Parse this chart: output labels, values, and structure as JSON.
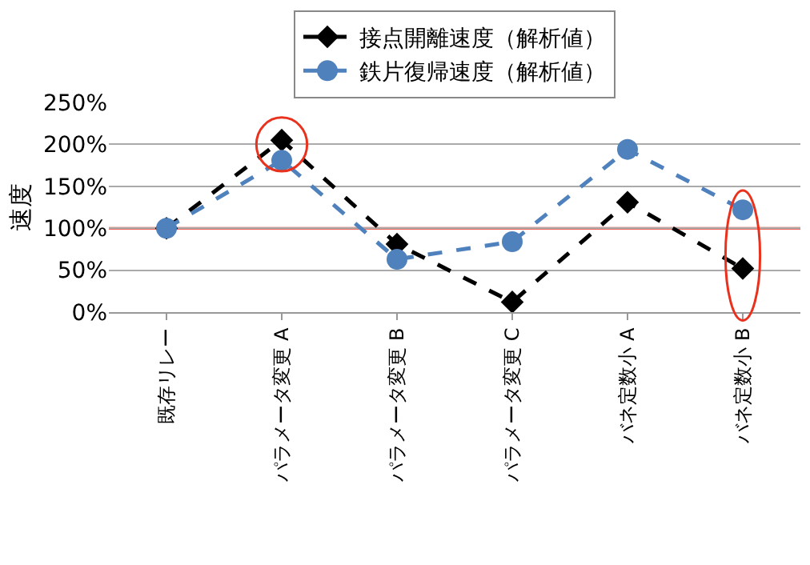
{
  "chart_data": {
    "type": "line",
    "ylabel": "速度",
    "categories": [
      "既存リレー",
      "パラメータ変更 A",
      "パラメータ変更 B",
      "パラメータ変更 C",
      "バネ定数小 A",
      "バネ定数小 B"
    ],
    "series": [
      {
        "name": "接点開離速度（解析値）",
        "color": "#000000",
        "marker": "diamond",
        "line_style": "dashed",
        "values": [
          100,
          205,
          81,
          12,
          131,
          52
        ]
      },
      {
        "name": "鉄片復帰速度（解析値）",
        "color": "#4f81bd",
        "marker": "circle",
        "line_style": "dashed",
        "values": [
          100,
          181,
          63,
          84,
          194,
          122
        ]
      }
    ],
    "ylim": [
      0,
      250
    ],
    "yticks": [
      {
        "value": 0,
        "label": "0%"
      },
      {
        "value": 50,
        "label": "50%"
      },
      {
        "value": 100,
        "label": "100%"
      },
      {
        "value": 150,
        "label": "150%"
      },
      {
        "value": 200,
        "label": "200%"
      },
      {
        "value": 250,
        "label": "250%"
      }
    ],
    "ref_lines": [
      {
        "axis": "y",
        "value": 100,
        "color": "#e8321e"
      }
    ],
    "grid": "y",
    "legend": "top"
  }
}
